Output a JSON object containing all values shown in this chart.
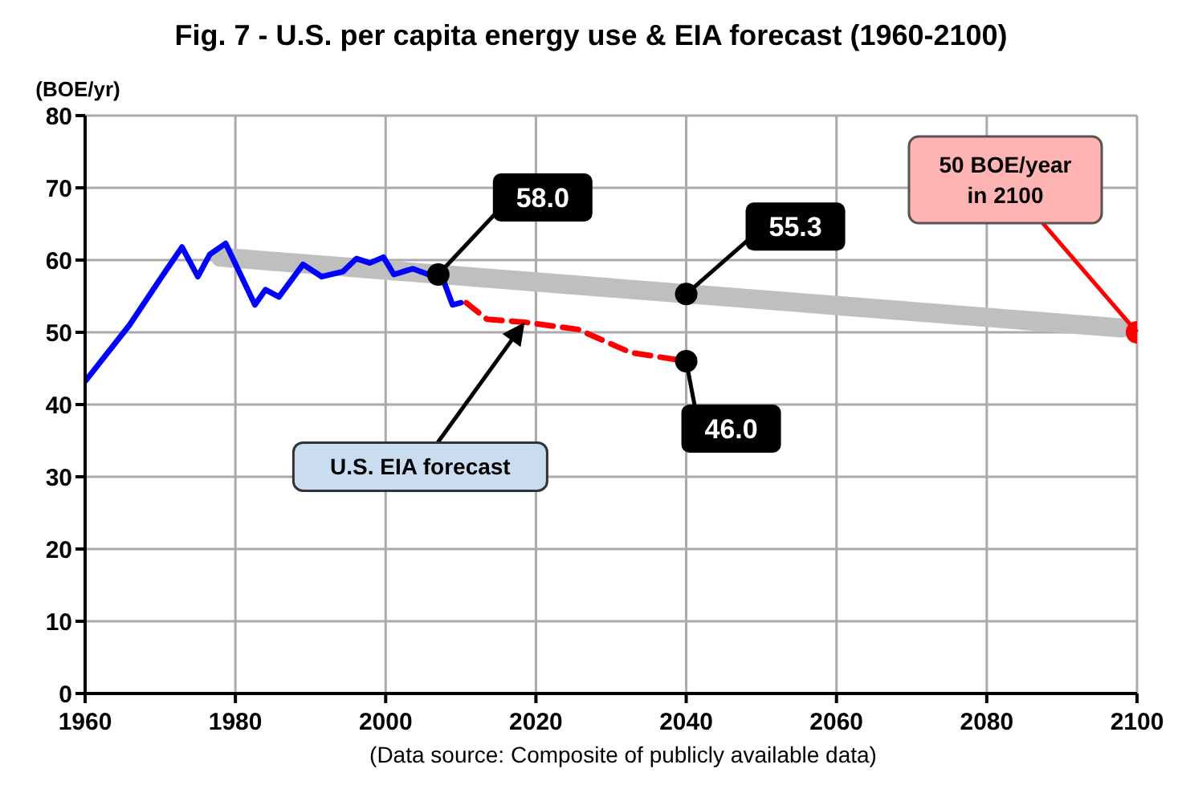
{
  "chart_data": {
    "type": "line",
    "title": "Fig. 7 - U.S. per capita energy use & EIA forecast (1960-2100)",
    "ylabel": "(BOE/yr)",
    "xlim": [
      1960,
      2100
    ],
    "xticks": [
      1960,
      1980,
      2000,
      2020,
      2040,
      2060,
      2080,
      2100
    ],
    "ylim": [
      0,
      80
    ],
    "yticks": [
      0,
      10,
      20,
      30,
      40,
      50,
      60,
      70,
      80
    ],
    "grid": true,
    "legend": false,
    "marker": "none",
    "series": [
      {
        "color": "#bfbfbf",
        "x": [
          1978,
          2098
        ],
        "values": [
          60.4,
          50.6
        ]
      },
      {
        "color": "#0000ff",
        "line_style": "solid",
        "x": [
          1960,
          1965.9,
          1970.2,
          1972.9,
          1975,
          1976.6,
          1978.7,
          1982.6,
          1984,
          1985.8,
          1989,
          1991.5,
          1994.3,
          1996.1,
          1997.9,
          1999.7,
          2001.1,
          2003.6,
          2005.7,
          2007.5,
          2008.9,
          2010
        ],
        "values": [
          43.2,
          51.0,
          57.7,
          61.8,
          57.7,
          60.8,
          62.3,
          53.8,
          55.9,
          54.9,
          59.4,
          57.7,
          58.4,
          60.2,
          59.6,
          60.4,
          58.0,
          58.8,
          58.0,
          57.7,
          53.8,
          54.1
        ]
      },
      {
        "color": "#ff0000",
        "line_style": "dashed",
        "x": [
          2010.7,
          2013.5,
          2018.5,
          2025.6,
          2032.6,
          2040
        ],
        "values": [
          54.1,
          51.8,
          51.4,
          50.4,
          47.2,
          46.0
        ]
      },
      {
        "type": "scatter",
        "color": "#000000",
        "marker": "circle",
        "x": [
          2007,
          2040,
          2040
        ],
        "values": [
          58.0,
          55.3,
          46.0
        ],
        "value_labels": [
          "58.0",
          "55.3",
          "46.0"
        ]
      },
      {
        "type": "scatter",
        "color": "#ff0000",
        "marker": "circle",
        "x": [
          2100
        ],
        "values": [
          50
        ]
      }
    ],
    "annotations": [
      {
        "text": "50 BOE/year\nin 2100",
        "x": 2100,
        "y": 50
      },
      "U.S. EIA forecast",
      "(Data source: Composite of publicly available data)"
    ]
  }
}
